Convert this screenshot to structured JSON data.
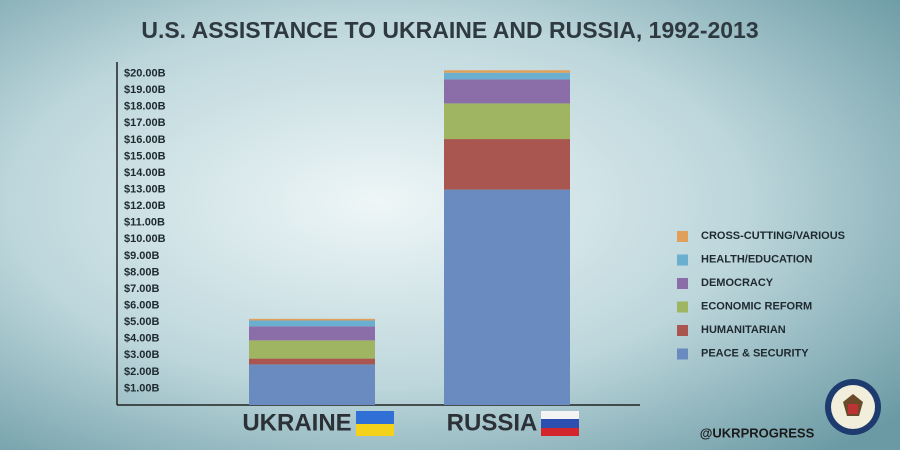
{
  "chart_data": {
    "type": "stacked-bar",
    "title": "U.S. ASSISTANCE TO UKRAINE AND RUSSIA, 1992-2013",
    "categories": [
      "UKRAINE",
      "RUSSIA"
    ],
    "series": [
      {
        "name": "PEACE & SECURITY",
        "color": "#6a8bbf",
        "values": [
          2.45,
          13.0
        ]
      },
      {
        "name": "HUMANITARIAN",
        "color": "#a8564f",
        "values": [
          0.35,
          3.05
        ]
      },
      {
        "name": "ECONOMIC REFORM",
        "color": "#9fb562",
        "values": [
          1.1,
          2.15
        ]
      },
      {
        "name": "DEMOCRACY",
        "color": "#8b6ea8",
        "values": [
          0.85,
          1.45
        ]
      },
      {
        "name": "HEALTH/EDUCATION",
        "color": "#6aaed0",
        "values": [
          0.35,
          0.4
        ]
      },
      {
        "name": "CROSS-CUTTING/VARIOUS",
        "color": "#e0a05a",
        "values": [
          0.1,
          0.15
        ]
      }
    ],
    "ylim": [
      0,
      20.7
    ],
    "yticks": [
      {
        "value": 1,
        "label": "$1.00B"
      },
      {
        "value": 2,
        "label": "$2.00B"
      },
      {
        "value": 3,
        "label": "$3.00B"
      },
      {
        "value": 4,
        "label": "$4.00B"
      },
      {
        "value": 5,
        "label": "$5.00B"
      },
      {
        "value": 6,
        "label": "$6.00B"
      },
      {
        "value": 7,
        "label": "$7.00B"
      },
      {
        "value": 8,
        "label": "$8.00B"
      },
      {
        "value": 9,
        "label": "$9.00B"
      },
      {
        "value": 10,
        "label": "$10.00B"
      },
      {
        "value": 11,
        "label": "$11.00B"
      },
      {
        "value": 12,
        "label": "$12.00B"
      },
      {
        "value": 13,
        "label": "$13.00B"
      },
      {
        "value": 14,
        "label": "$14.00B"
      },
      {
        "value": 15,
        "label": "$15.00B"
      },
      {
        "value": 16,
        "label": "$16.00B"
      },
      {
        "value": 17,
        "label": "$17.00B"
      },
      {
        "value": 18,
        "label": "$18.00B"
      },
      {
        "value": 19,
        "label": "$19.00B"
      },
      {
        "value": 20,
        "label": "$20.00B"
      }
    ],
    "legend": "right",
    "credit": "@UKRPROGRESS"
  }
}
